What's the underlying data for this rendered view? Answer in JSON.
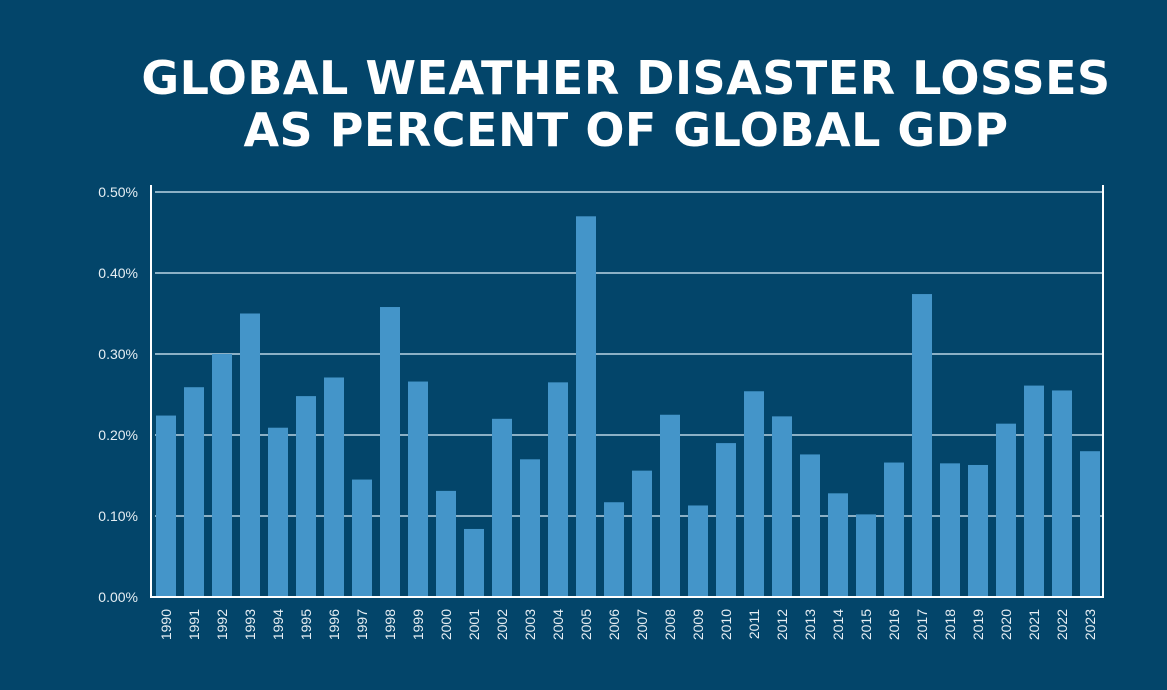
{
  "chart_data": {
    "type": "bar",
    "title": [
      "GLOBAL WEATHER DISASTER LOSSES",
      "AS PERCENT OF GLOBAL GDP"
    ],
    "xlabel": "",
    "ylabel": "",
    "ylim": [
      0,
      0.5
    ],
    "yticks": [
      "0.00%",
      "0.10%",
      "0.20%",
      "0.30%",
      "0.40%",
      "0.50%"
    ],
    "grid": true,
    "categories": [
      "1990",
      "1991",
      "1992",
      "1993",
      "1994",
      "1995",
      "1996",
      "1997",
      "1998",
      "1999",
      "2000",
      "2001",
      "2002",
      "2003",
      "2004",
      "2005",
      "2006",
      "2007",
      "2008",
      "2009",
      "2010",
      "2011",
      "2012",
      "2013",
      "2014",
      "2015",
      "2016",
      "2017",
      "2018",
      "2019",
      "2020",
      "2021",
      "2022",
      "2023"
    ],
    "values": [
      0.224,
      0.259,
      0.3,
      0.35,
      0.209,
      0.248,
      0.271,
      0.145,
      0.358,
      0.266,
      0.131,
      0.084,
      0.22,
      0.17,
      0.265,
      0.47,
      0.117,
      0.156,
      0.225,
      0.113,
      0.19,
      0.254,
      0.223,
      0.176,
      0.128,
      0.102,
      0.166,
      0.374,
      0.165,
      0.163,
      0.214,
      0.261,
      0.255,
      0.18
    ],
    "unit": "% of global GDP",
    "colors": {
      "background": "#03456a",
      "bar": "#4495c9",
      "grid": "#b9d3e3",
      "text": "#ffffff"
    }
  }
}
